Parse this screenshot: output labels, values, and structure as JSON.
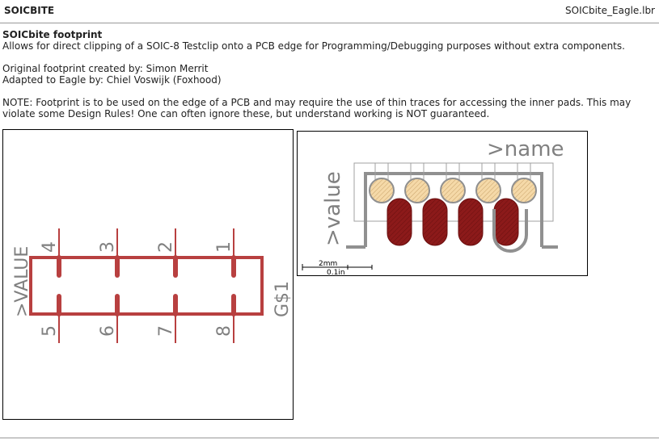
{
  "header": {
    "title": "SOICBITE",
    "file": "SOICbite_Eagle.lbr"
  },
  "description": {
    "heading": "SOICbite footprint",
    "line1": "Allows for direct clipping of a SOIC-8 Testclip onto a PCB edge for Programming/Debugging purposes without extra components.",
    "author": "Original footprint created by: Simon Merrit",
    "adapted": "Adapted to Eagle by: Chiel Voswijk (Foxhood)",
    "note": "NOTE: Footprint is to be used on the edge of a PCB and may require the use of thin traces for accessing the inner pads. This may violate some Design Rules! One can often ignore these, but understand working is NOT guaranteed."
  },
  "symbol": {
    "value_label": ">VALUE",
    "name_label": "G$1",
    "top_pins": [
      "4",
      "3",
      "2",
      "1"
    ],
    "bottom_pins": [
      "5",
      "6",
      "7",
      "8"
    ],
    "colors": {
      "body": "#b84040",
      "text": "#808080"
    }
  },
  "package": {
    "name_label": ">name",
    "value_label": ">value",
    "scale_mm": "2mm",
    "scale_in": "0.1in",
    "colors": {
      "pad": "#8c1a1a",
      "outline": "#909090",
      "pad_hole": "#f5d9a8"
    }
  }
}
